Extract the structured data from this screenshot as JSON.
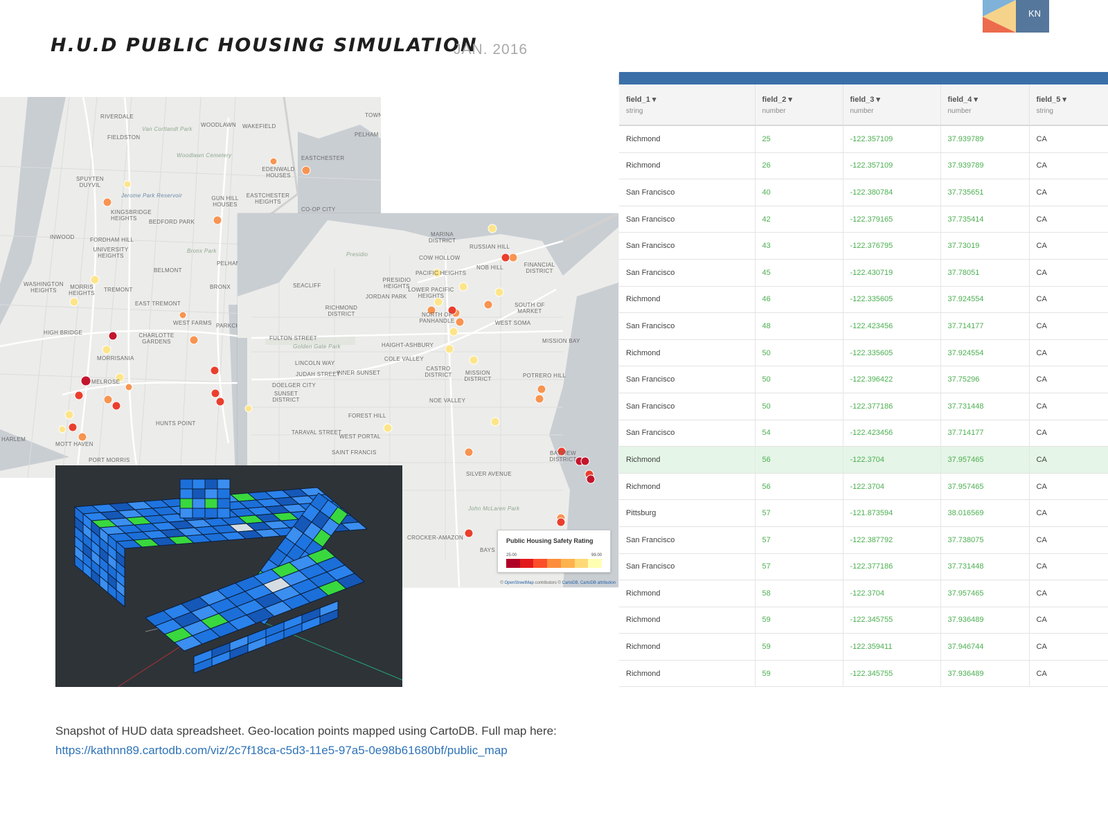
{
  "header": {
    "title": "H.U.D PUBLIC HOUSING SIMULATION",
    "date": "JAN. 2016"
  },
  "logo": {
    "initials": "KN",
    "colors": [
      "#7fb2d8",
      "#f6d38a",
      "#ec6b4d",
      "#56779c"
    ]
  },
  "map_ny": {
    "labels": [
      "RIVERDALE",
      "FIELDSTON",
      "WOODLAWN",
      "WAKEFIELD",
      "Van Cortlandt Park",
      "Woodlawn Cemetery",
      "EASTCHESTER",
      "EDENWALD HOUSES",
      "SPUYTEN DUYVIL",
      "Jerome Park Reservoir",
      "KINGSBRIDGE HEIGHTS",
      "BEDFORD PARK",
      "GUN HILL HOUSES",
      "EASTCHESTER HEIGHTS",
      "CO-OP CITY",
      "INWOOD",
      "FORDHAM HILL",
      "UNIVERSITY HEIGHTS",
      "BELMONT",
      "Bronx Park",
      "PELHAM",
      "WASHINGTON HEIGHTS",
      "MORRIS HEIGHTS",
      "TREMONT",
      "BRONX",
      "EAST TREMONT",
      "HIGH BRIDGE",
      "CHARLOTTE GARDENS",
      "WEST FARMS",
      "PARKCH",
      "MORRISANIA",
      "MELROSE",
      "HUNTS POINT",
      "MOTT HAVEN",
      "PORT MORRIS",
      "HARLEM",
      "TOWN",
      "PELHAM M"
    ]
  },
  "map_sf": {
    "labels": [
      "MARINA DISTRICT",
      "RUSSIAN HILL",
      "COW HOLLOW",
      "NOB HILL",
      "FINANCIAL DISTRICT",
      "PACIFIC HEIGHTS",
      "Presidio",
      "SEACLIFF",
      "PRESIDIO HEIGHTS",
      "LOWER PACIFIC HEIGHTS",
      "JORDAN PARK",
      "RICHMOND DISTRICT",
      "NORTH OF PANHANDLE",
      "SOUTH OF MARKET",
      "WEST SOMA",
      "FULTON STREET",
      "Golden Gate Park",
      "HAIGHT-ASHBURY",
      "LINCOLN WAY",
      "COLE VALLEY",
      "MISSION BAY",
      "JUDAH STREET",
      "INNER SUNSET",
      "CASTRO DISTRICT",
      "MISSION DISTRICT",
      "POTRERO HILL",
      "DOELGER CITY",
      "SUNSET DISTRICT",
      "NOE VALLEY",
      "FOREST HILL",
      "TARAVAL STREET",
      "WEST PORTAL",
      "SAINT FRANCIS",
      "BAYVIEW DISTRICT",
      "SILVER AVENUE",
      "John McLaren Park",
      "CROCKER-AMAZON",
      "BAYS"
    ],
    "legend": {
      "title": "Public Housing Safety Rating",
      "min": "25.00",
      "max": "99.00",
      "colors": [
        "#b10026",
        "#e31a1c",
        "#fc4e2a",
        "#fd8d3c",
        "#feb24c",
        "#fed976",
        "#ffffb2"
      ]
    },
    "attribution": {
      "prefix": "© ",
      "osm": "OpenStreetMap",
      "mid": " contributors © ",
      "carto": "CartoDB",
      "sep": ", ",
      "cartodb_attr": "CartoDB attribution"
    }
  },
  "spreadsheet": {
    "columns": [
      {
        "name": "field_1 ▾",
        "type": "string"
      },
      {
        "name": "field_2 ▾",
        "type": "number"
      },
      {
        "name": "field_3 ▾",
        "type": "number"
      },
      {
        "name": "field_4 ▾",
        "type": "number"
      },
      {
        "name": "field_5 ▾",
        "type": "string"
      }
    ],
    "rows": [
      [
        "Richmond",
        "25",
        "-122.357109",
        "37.939789",
        "CA"
      ],
      [
        "Richmond",
        "26",
        "-122.357109",
        "37.939789",
        "CA"
      ],
      [
        "San Francisco",
        "40",
        "-122.380784",
        "37.735651",
        "CA"
      ],
      [
        "San Francisco",
        "42",
        "-122.379165",
        "37.735414",
        "CA"
      ],
      [
        "San Francisco",
        "43",
        "-122.376795",
        "37.73019",
        "CA"
      ],
      [
        "San Francisco",
        "45",
        "-122.430719",
        "37.78051",
        "CA"
      ],
      [
        "Richmond",
        "46",
        "-122.335605",
        "37.924554",
        "CA"
      ],
      [
        "San Francisco",
        "48",
        "-122.423456",
        "37.714177",
        "CA"
      ],
      [
        "Richmond",
        "50",
        "-122.335605",
        "37.924554",
        "CA"
      ],
      [
        "San Francisco",
        "50",
        "-122.396422",
        "37.75296",
        "CA"
      ],
      [
        "San Francisco",
        "50",
        "-122.377186",
        "37.731448",
        "CA"
      ],
      [
        "San Francisco",
        "54",
        "-122.423456",
        "37.714177",
        "CA"
      ],
      [
        "Richmond",
        "56",
        "-122.3704",
        "37.957465",
        "CA"
      ],
      [
        "Richmond",
        "56",
        "-122.3704",
        "37.957465",
        "CA"
      ],
      [
        "Pittsburg",
        "57",
        "-121.873594",
        "38.016569",
        "CA"
      ],
      [
        "San Francisco",
        "57",
        "-122.387792",
        "37.738075",
        "CA"
      ],
      [
        "San Francisco",
        "57",
        "-122.377186",
        "37.731448",
        "CA"
      ],
      [
        "Richmond",
        "58",
        "-122.3704",
        "37.957465",
        "CA"
      ],
      [
        "Richmond",
        "59",
        "-122.345755",
        "37.936489",
        "CA"
      ],
      [
        "Richmond",
        "59",
        "-122.359411",
        "37.946744",
        "CA"
      ],
      [
        "Richmond",
        "59",
        "-122.345755",
        "37.936489",
        "CA"
      ]
    ],
    "highlighted_row": 12
  },
  "caption": {
    "text": "Snapshot of HUD data spreadsheet. Geo-location points mapped using CartoDB.  Full map here:",
    "link": "https://kathnn89.cartodb.com/viz/2c7f18ca-c5d3-11e5-97a5-0e98b61680bf/public_map"
  }
}
